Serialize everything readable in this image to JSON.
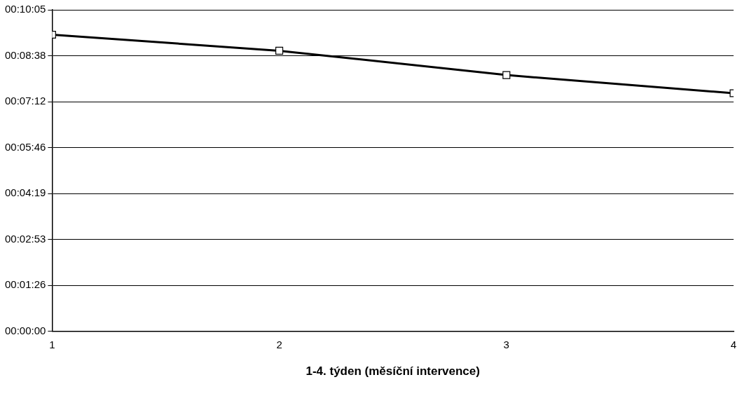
{
  "chart_data": {
    "type": "line",
    "xlabel": "1-4. týden (měsíční intervence)",
    "x": [
      1,
      2,
      3,
      4
    ],
    "xlim": [
      1,
      4
    ],
    "xticks": [
      1,
      2,
      3,
      4
    ],
    "ylim": [
      0,
      0.168
    ],
    "yticks": [
      {
        "value": 0,
        "label": "00:00:00"
      },
      {
        "value": 0.024,
        "label": "00:01:26"
      },
      {
        "value": 0.048,
        "label": "00:02:53"
      },
      {
        "value": 0.072,
        "label": "00:04:19"
      },
      {
        "value": 0.096,
        "label": "00:05:46"
      },
      {
        "value": 0.12,
        "label": "00:07:12"
      },
      {
        "value": 0.144,
        "label": "00:08:38"
      },
      {
        "value": 0.168,
        "label": "00:10:05"
      }
    ],
    "series": [
      {
        "color": "#000000",
        "values": [
          0.155,
          0.1466,
          0.1339,
          0.1244
        ]
      }
    ],
    "grid": "y",
    "marker": "square",
    "line_style": "solid",
    "legend": false
  }
}
